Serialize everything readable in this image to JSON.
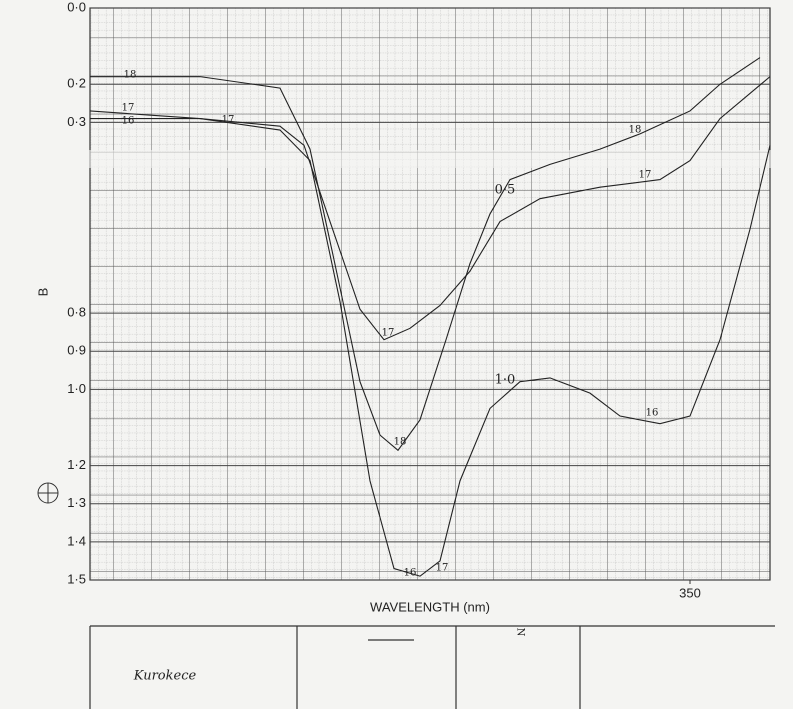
{
  "chart_data": {
    "type": "line",
    "y_label": "B",
    "x_label": "WAVELENGTH (nm)",
    "xlim": [
      200,
      370
    ],
    "xticks": [
      350
    ],
    "ylim": [
      1.5,
      0
    ],
    "yticks": [
      {
        "value": 0,
        "label": "0·0"
      },
      {
        "value": 0.2,
        "label": "0·2"
      },
      {
        "value": 0.3,
        "label": "0·3"
      },
      {
        "value": 0.8,
        "label": "0·8"
      },
      {
        "value": 0.9,
        "label": "0·9"
      },
      {
        "value": 1.0,
        "label": "1·0"
      },
      {
        "value": 1.2,
        "label": "1·2"
      },
      {
        "value": 1.3,
        "label": "1·3"
      },
      {
        "value": 1.4,
        "label": "1·4"
      },
      {
        "value": 1.5,
        "label": "1·5"
      }
    ],
    "grid": true,
    "series": [
      {
        "color": "#222222",
        "x": [
          200,
          215,
          227.5,
          247.5,
          255,
          261,
          267.5,
          272.5,
          277,
          282.5,
          289,
          295,
          300,
          305,
          315,
          327.5,
          337.5,
          350,
          357.5,
          367.5
        ],
        "values": [
          0.18,
          0.18,
          0.18,
          0.21,
          0.37,
          0.66,
          0.98,
          1.12,
          1.16,
          1.08,
          0.87,
          0.67,
          0.54,
          0.45,
          0.41,
          0.37,
          0.33,
          0.27,
          0.2,
          0.13
        ]
      },
      {
        "color": "#222222",
        "x": [
          200,
          227.5,
          247.5,
          253.5,
          260,
          267.5,
          273.5,
          280,
          287.5,
          295,
          302.5,
          312.5,
          327.5,
          342.5,
          350,
          357.5,
          370
        ],
        "values": [
          0.27,
          0.29,
          0.31,
          0.36,
          0.56,
          0.79,
          0.87,
          0.84,
          0.78,
          0.69,
          0.56,
          0.5,
          0.47,
          0.45,
          0.4,
          0.29,
          0.18
        ]
      },
      {
        "color": "#222222",
        "x": [
          200,
          227.5,
          247.5,
          255,
          262.5,
          270,
          276,
          282.5,
          287.5,
          292.5,
          300,
          307.5,
          315,
          325,
          332.5,
          342.5,
          350,
          357.5,
          365,
          370
        ],
        "values": [
          0.29,
          0.29,
          0.32,
          0.4,
          0.77,
          1.24,
          1.47,
          1.49,
          1.45,
          1.24,
          1.05,
          0.98,
          0.97,
          1.01,
          1.07,
          1.09,
          1.07,
          0.87,
          0.58,
          0.36
        ]
      }
    ],
    "annotations": [
      "18",
      "17",
      "16",
      "17",
      "17",
      "18",
      "16",
      "17",
      "0·5",
      "1·0",
      "18",
      "17",
      "16",
      "N",
      "Kurokece"
    ]
  }
}
